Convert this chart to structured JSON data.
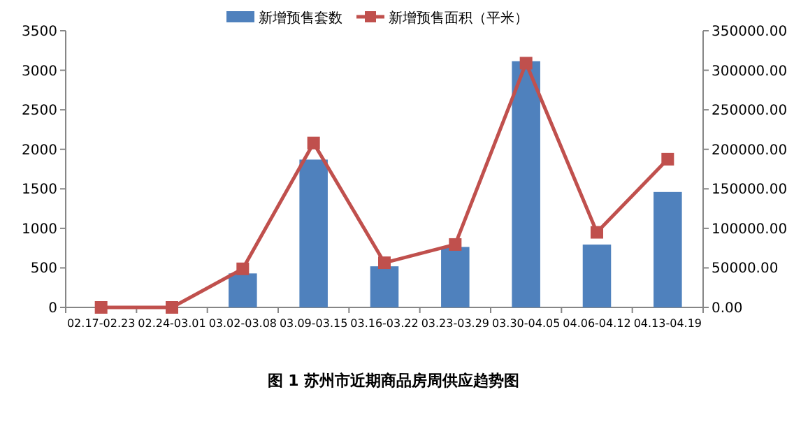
{
  "chart_data": {
    "type": "bar",
    "title": "图 1  苏州市近期商品房周供应趋势图",
    "categories": [
      "02.17-02.23",
      "02.24-03.01",
      "03.02-03.08",
      "03.09-03.15",
      "03.16-03.22",
      "03.23-03.29",
      "03.30-04.05",
      "04.06-04.12",
      "04.13-04.19"
    ],
    "series": [
      {
        "name": "新增预售套数",
        "color": "#4f81bd",
        "values": [
          0,
          0,
          430,
          1870,
          520,
          765,
          3115,
          795,
          1460
        ]
      },
      {
        "name": "新增预售面积（平米）",
        "type": "line",
        "axis": "y2",
        "marker": "square",
        "color": "#c0504d",
        "values": [
          0,
          0,
          48800,
          208000,
          56500,
          79600,
          309000,
          95000,
          187500
        ]
      }
    ],
    "ylim": [
      0,
      3500
    ],
    "yticks": [
      0,
      500,
      1000,
      1500,
      2000,
      2500,
      3000,
      3500
    ],
    "y2lim": [
      0,
      350000
    ],
    "y2ticks": [
      {
        "value": 0,
        "label": "0.00"
      },
      {
        "value": 50000,
        "label": "50000.00"
      },
      {
        "value": 100000,
        "label": "100000.00"
      },
      {
        "value": 150000,
        "label": "150000.00"
      },
      {
        "value": 200000,
        "label": "200000.00"
      },
      {
        "value": 250000,
        "label": "250000.00"
      },
      {
        "value": 300000,
        "label": "300000.00"
      },
      {
        "value": 350000,
        "label": "350000.00"
      }
    ],
    "grid": false,
    "legend": "top"
  }
}
